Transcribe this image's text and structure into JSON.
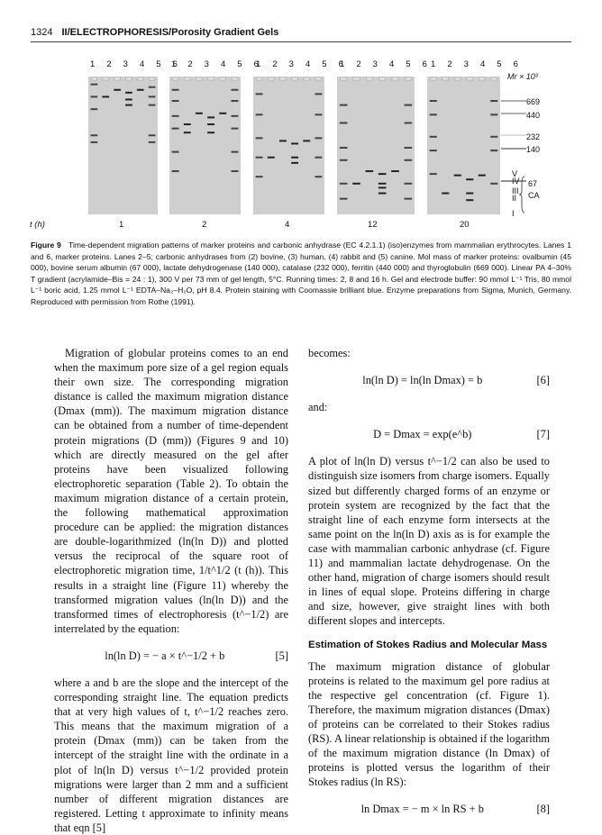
{
  "header": {
    "page_number": "1324",
    "running_title": "II/ELECTROPHORESIS/Porosity Gradient Gels"
  },
  "figure": {
    "lane_numbers": "1 2 3 4 5 6",
    "time_axis_label": "t (h)",
    "time_points": [
      "1",
      "2",
      "4",
      "12",
      "20"
    ],
    "mr_label": "Mr × 10³",
    "mr_markers": [
      "669",
      "440",
      "232",
      "140",
      "67"
    ],
    "isoenzyme_labels": [
      "V",
      "IV",
      "III",
      "II",
      "I"
    ],
    "ca_label": "CA",
    "caption_label": "Figure 9",
    "caption_text": "Time-dependent migration patterns of marker proteins and carbonic anhydrase (EC 4.2.1.1) (iso)enzymes from mammalian erythrocytes. Lanes 1 and 6, marker proteins. Lanes 2–5; carbonic anhydrases from (2) bovine, (3) human, (4) rabbit and (5) canine. Mol mass of marker proteins: ovalbumin (45 000), bovine serum albumin (67 000), lactate dehydrogenase (140 000), catalase (232 000), ferritin (440 000) and thyroglobulin (669 000). Linear PA 4–30% T gradient (acrylamide–Bis = 24 : 1), 300 V per 73 mm of gel length, 5°C. Running times: 2, 8 and 16 h. Gel and electrode buffer: 90 mmol L⁻¹ Tris, 80 mmol L⁻¹ boric acid, 1.25 mmol L⁻¹ EDTA–Na₂–H₂O, pH 8.4. Protein staining with Coomassie brilliant blue. Enzyme preparations from Sigma, Munich, Germany. Reproduced with permission from Rothe (1991)."
  },
  "left_column": {
    "p1": "Migration of globular proteins comes to an end when the maximum pore size of a gel region equals their own size. The corresponding migration distance is called the maximum migration distance (Dmax (mm)). The maximum migration distance can be obtained from a number of time-dependent protein migrations (D (mm)) (Figures 9 and 10) which are directly measured on the gel after proteins have been visualized following electrophoretic separation (Table 2). To obtain the maximum migration distance of a certain protein, the following mathematical approximation procedure can be applied: the migration distances are double-logarithmized (ln(ln D)) and plotted versus the reciprocal of the square root of electrophoretic migration time, 1/t^1/2 (t (h)). This results in a straight line (Figure 11) whereby the transformed migration values (ln(ln D)) and the transformed times of electrophoresis (t^−1/2) are interrelated by the equation:",
    "eq5": "ln(ln D) = − a × t^−1/2 + b",
    "eq5_num": "[5]",
    "p2": "where a and b are the slope and the intercept of the corresponding straight line. The equation predicts that at very high values of t, t^−1/2 reaches zero. This means that the maximum migration of a protein (Dmax (mm)) can be taken from the intercept of the straight line with the ordinate in a plot of ln(ln D) versus t^−1/2 provided protein migrations were larger than 2 mm and a sufficient number of different migration distances are registered. Letting t approximate to infinity means that eqn [5]"
  },
  "right_column": {
    "p1": "becomes:",
    "eq6": "ln(ln D) = ln(ln Dmax) = b",
    "eq6_num": "[6]",
    "p2": "and:",
    "eq7": "D = Dmax = exp(e^b)",
    "eq7_num": "[7]",
    "p3": "A plot of ln(ln D) versus t^−1/2 can also be used to distinguish size isomers from charge isomers. Equally sized but differently charged forms of an enzyme or protein system are recognized by the fact that the straight line of each enzyme form intersects at the same point on the ln(ln D) axis as is for example the case with mammalian carbonic anhydrase (cf. Figure 11) and mammalian lactate dehydrogenase. On the other hand, migration of charge isomers should result in lines of equal slope. Proteins differing in charge and size, however, give straight lines with both different slopes and intercepts.",
    "heading": "Estimation of Stokes Radius and Molecular Mass",
    "p4": "The maximum migration distance of globular proteins is related to the maximum gel pore radius at the respective gel concentration (cf. Figure 1). Therefore, the maximum migration distances (Dmax) of proteins can be correlated to their Stokes radius (RS). A linear relationship is obtained if the logarithm of the maximum migration distance (ln Dmax) of proteins is plotted versus the logarithm of their Stokes radius (ln RS):",
    "eq8": "ln Dmax = − m × ln RS + b",
    "eq8_num": "[8]"
  }
}
